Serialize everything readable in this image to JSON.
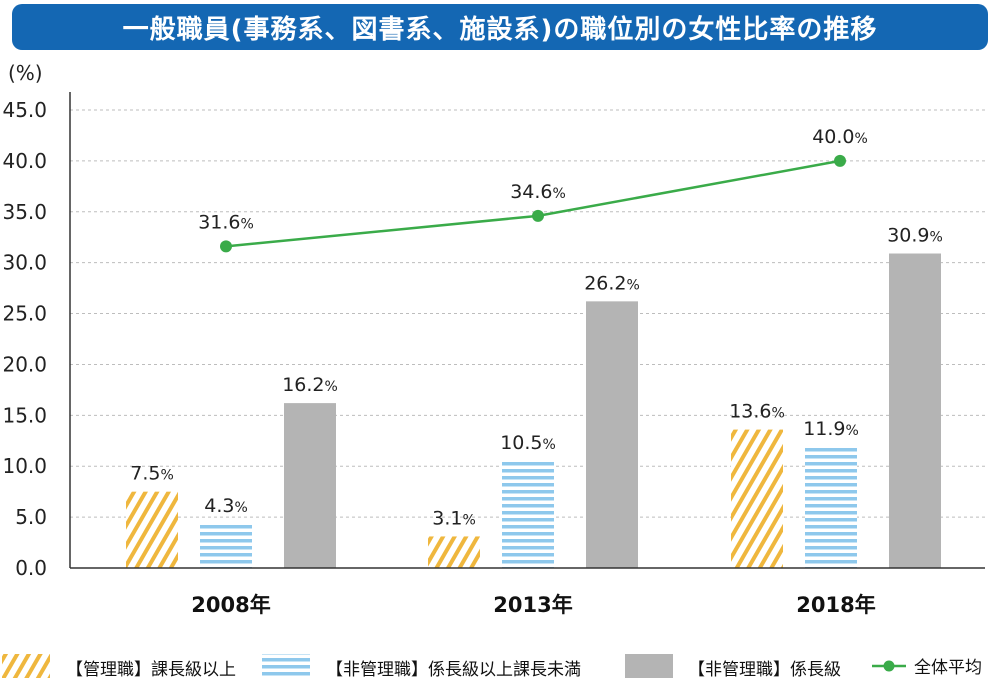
{
  "title": "一般職員(事務系、図書系、施設系)の職位別の女性比率の推移",
  "chart_data": {
    "type": "bar",
    "unit_label": "(%)",
    "percent_suffix": "%",
    "categories": [
      "2008年",
      "2013年",
      "2018年"
    ],
    "yticks": [
      "0.0",
      "5.0",
      "10.0",
      "15.0",
      "20.0",
      "25.0",
      "30.0",
      "35.0",
      "40.0",
      "45.0"
    ],
    "ylim": [
      0,
      45
    ],
    "grid": true,
    "legend_position": "bottom",
    "series": [
      {
        "name": "【管理職】課長級以上",
        "values": [
          7.5,
          3.1,
          13.6
        ],
        "labels": [
          "7.5",
          "3.1",
          "13.6"
        ],
        "pattern": "hatch",
        "color": "#efb73e"
      },
      {
        "name": "【非管理職】係長級以上課長未満",
        "values": [
          4.3,
          10.5,
          11.9
        ],
        "labels": [
          "4.3",
          "10.5",
          "11.9"
        ],
        "pattern": "stripes",
        "color": "#8ec8ec"
      },
      {
        "name": "【非管理職】係長級",
        "values": [
          16.2,
          26.2,
          30.9
        ],
        "labels": [
          "16.2",
          "26.2",
          "30.9"
        ],
        "pattern": "solid",
        "color": "#b4b4b4"
      }
    ],
    "line": {
      "name": "全体平均",
      "values": [
        31.6,
        34.6,
        40.0
      ],
      "labels": [
        "31.6",
        "34.6",
        "40.0"
      ],
      "color": "#3aab49"
    }
  }
}
